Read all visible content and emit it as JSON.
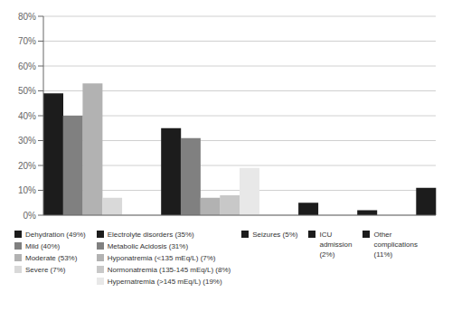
{
  "chart_data": {
    "type": "bar",
    "categories": [
      null,
      null,
      null,
      null,
      null
    ],
    "series": [
      {
        "name": "Dehydration  (49%)",
        "color": "#1c1c1c",
        "values": [
          49,
          null,
          null,
          null,
          null
        ]
      },
      {
        "name": "Mild (40%)",
        "color": "#808080",
        "values": [
          40,
          null,
          null,
          null,
          null
        ]
      },
      {
        "name": "Moderate (53%)",
        "color": "#b2b2b2",
        "values": [
          53,
          null,
          null,
          null,
          null
        ]
      },
      {
        "name": "Severe (7%)",
        "color": "#d9d9d9",
        "values": [
          7,
          null,
          null,
          null,
          null
        ]
      },
      {
        "name": "Electrolyte disorders (35%)",
        "color": "#1c1c1c",
        "values": [
          null,
          35,
          null,
          null,
          null
        ]
      },
      {
        "name": "Metabolic Acidosis (31%)",
        "color": "#808080",
        "values": [
          null,
          31,
          null,
          null,
          null
        ]
      },
      {
        "name": "Hyponatremia (<135 mEq/L) (7%)",
        "color": "#b2b2b2",
        "values": [
          null,
          7,
          null,
          null,
          null
        ]
      },
      {
        "name": "Normonatremia (135-145 mEq/L) (8%)",
        "color": "#c8c8c8",
        "values": [
          null,
          8,
          null,
          null,
          null
        ]
      },
      {
        "name": "Hypernatremia (>145 mEq/L) (19%)",
        "color": "#e8e8e8",
        "values": [
          null,
          19,
          null,
          null,
          null
        ]
      },
      {
        "name": "Seizures (5%)",
        "color": "#1c1c1c",
        "values": [
          null,
          null,
          5,
          null,
          null
        ]
      },
      {
        "name": "ICU\nadmission\n(2%)",
        "color": "#1c1c1c",
        "values": [
          null,
          null,
          null,
          2,
          null
        ]
      },
      {
        "name": "Other\ncomplications\n(11%)",
        "color": "#1c1c1c",
        "values": [
          null,
          null,
          null,
          null,
          11
        ]
      }
    ],
    "ylim": [
      0,
      80
    ],
    "yticks": [
      {
        "value": 0,
        "label": "0%"
      },
      {
        "value": 10,
        "label": "10%"
      },
      {
        "value": 20,
        "label": "20%"
      },
      {
        "value": 30,
        "label": "30%"
      },
      {
        "value": 40,
        "label": "40%"
      },
      {
        "value": 50,
        "label": "50%"
      },
      {
        "value": 60,
        "label": "60%"
      },
      {
        "value": 70,
        "label": "70%"
      },
      {
        "value": 80,
        "label": "80%"
      }
    ],
    "grid": true,
    "tick_labels": "y",
    "legend": "bottom"
  }
}
